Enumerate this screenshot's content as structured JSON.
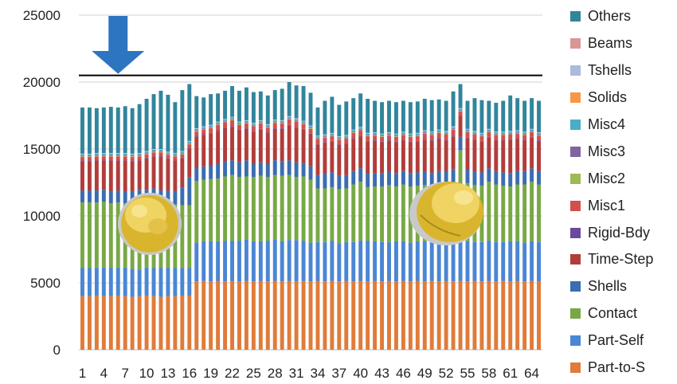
{
  "chart_data": {
    "type": "bar",
    "stacked": true,
    "ylim": [
      0,
      25000
    ],
    "yticks": [
      0,
      5000,
      10000,
      15000,
      20000,
      25000
    ],
    "grid": true,
    "legend_position": "right",
    "xtick_labels": [
      "1",
      "4",
      "7",
      "10",
      "13",
      "16",
      "19",
      "22",
      "25",
      "28",
      "31",
      "34",
      "37",
      "40",
      "43",
      "46",
      "49",
      "52",
      "55",
      "58",
      "61",
      "64"
    ],
    "categories": [
      1,
      2,
      3,
      4,
      5,
      6,
      7,
      8,
      9,
      10,
      11,
      12,
      13,
      14,
      15,
      16,
      17,
      18,
      19,
      20,
      21,
      22,
      23,
      24,
      25,
      26,
      27,
      28,
      29,
      30,
      31,
      32,
      33,
      34,
      35,
      36,
      37,
      38,
      39,
      40,
      41,
      42,
      43,
      44,
      45,
      46,
      47,
      48,
      49,
      50,
      51,
      52,
      53,
      54,
      55,
      56,
      57,
      58,
      59,
      60,
      61,
      62,
      63,
      64,
      65
    ],
    "reference_line": {
      "y": 20500,
      "color": "#000000"
    },
    "arrow": {
      "x": 6,
      "color": "#2e75c0"
    },
    "series": [
      {
        "name": "Part-to-S",
        "color": "#e07b39",
        "values": [
          4000,
          4000,
          4050,
          4000,
          4000,
          4050,
          4000,
          3950,
          4000,
          4050,
          4000,
          3950,
          4000,
          4000,
          4050,
          4050,
          5100,
          5150,
          5100,
          5150,
          5100,
          5150,
          5100,
          5150,
          5100,
          5150,
          5100,
          5150,
          5100,
          5150,
          5100,
          5150,
          5100,
          5150,
          5100,
          5150,
          5100,
          5150,
          5100,
          5150,
          5100,
          5150,
          5100,
          5150,
          5100,
          5150,
          5100,
          5150,
          5100,
          5150,
          5100,
          5150,
          5100,
          5150,
          5100,
          5150,
          5100,
          5150,
          5100,
          5150,
          5100,
          5150,
          5100,
          5150,
          5100
        ]
      },
      {
        "name": "Part-Self",
        "color": "#4a86d4",
        "values": [
          2100,
          2100,
          2100,
          2150,
          2100,
          2100,
          2150,
          2100,
          2000,
          2100,
          2100,
          2150,
          2100,
          2100,
          2050,
          2050,
          2900,
          2950,
          3000,
          2950,
          3050,
          3000,
          3050,
          3100,
          3000,
          2950,
          3050,
          3100,
          3000,
          3050,
          3100,
          3000,
          2900,
          2900,
          2950,
          3000,
          2850,
          2900,
          2950,
          3000,
          3050,
          2950,
          2950,
          2900,
          3000,
          2950,
          2900,
          2950,
          3000,
          2900,
          2950,
          2900,
          3000,
          2950,
          3000,
          2900,
          2950,
          3000,
          2950,
          2900,
          3000,
          2950,
          2900,
          2950,
          2950
        ]
      },
      {
        "name": "Contact",
        "color": "#78a846",
        "values": [
          4900,
          4900,
          4850,
          4900,
          4850,
          4850,
          4800,
          4900,
          4950,
          4700,
          4750,
          4700,
          4600,
          4750,
          4700,
          4700,
          4600,
          4600,
          4650,
          4700,
          4800,
          4900,
          4750,
          4700,
          4800,
          4900,
          4750,
          4800,
          4900,
          4850,
          4700,
          4800,
          4700,
          4000,
          4000,
          4000,
          4050,
          4000,
          4300,
          4400,
          4000,
          4100,
          4150,
          4250,
          4100,
          4250,
          4200,
          4150,
          4200,
          4150,
          4300,
          4250,
          4400,
          6800,
          4350,
          4250,
          4200,
          4400,
          4300,
          4200,
          4100,
          4250,
          4350,
          4450,
          4300
        ]
      },
      {
        "name": "Shells",
        "color": "#3b6db0",
        "values": [
          900,
          900,
          900,
          900,
          900,
          900,
          900,
          900,
          1000,
          1100,
          1200,
          1100,
          1200,
          1000,
          1300,
          2100,
          1000,
          1000,
          1000,
          1100,
          1100,
          1100,
          1100,
          1200,
          1000,
          1000,
          1000,
          1100,
          1100,
          1100,
          1100,
          1000,
          1000,
          1000,
          1100,
          1100,
          1000,
          1000,
          1000,
          1000,
          1000,
          1000,
          1000,
          1000,
          1000,
          1000,
          1000,
          1000,
          1000,
          1000,
          1000,
          1000,
          1000,
          1000,
          1000,
          1000,
          1000,
          1000,
          1000,
          1000,
          1000,
          1000,
          1000,
          1000,
          1000
        ]
      },
      {
        "name": "Time-Step",
        "color": "#b13d3a",
        "values": [
          2200,
          2200,
          2250,
          2200,
          2300,
          2250,
          2300,
          2250,
          2200,
          2350,
          2400,
          2550,
          2350,
          2300,
          2200,
          2150,
          2300,
          2350,
          2400,
          2450,
          2500,
          2500,
          2400,
          2350,
          2400,
          2450,
          2300,
          2350,
          2400,
          2600,
          2600,
          2500,
          2400,
          2300,
          2300,
          2300,
          2300,
          2350,
          2400,
          2400,
          2400,
          2400,
          2300,
          2300,
          2300,
          2300,
          2300,
          2300,
          2400,
          2400,
          2400,
          2350,
          2400,
          1550,
          2350,
          2400,
          2300,
          2300,
          2300,
          2400,
          2500,
          2400,
          2300,
          2300,
          2250
        ]
      },
      {
        "name": "Rigid-Bdy",
        "color": "#6a4b9a",
        "values": [
          50,
          50,
          50,
          50,
          50,
          50,
          50,
          50,
          50,
          50,
          50,
          50,
          50,
          50,
          50,
          50,
          50,
          50,
          50,
          50,
          50,
          50,
          50,
          50,
          50,
          50,
          50,
          50,
          50,
          50,
          50,
          50,
          50,
          50,
          50,
          50,
          50,
          50,
          50,
          50,
          50,
          50,
          50,
          50,
          50,
          50,
          50,
          50,
          50,
          50,
          50,
          50,
          50,
          50,
          50,
          50,
          50,
          50,
          50,
          50,
          50,
          50,
          50,
          50,
          50
        ]
      },
      {
        "name": "Misc1",
        "color": "#d0504d",
        "values": [
          250,
          250,
          250,
          250,
          250,
          250,
          250,
          250,
          250,
          250,
          250,
          250,
          250,
          250,
          250,
          250,
          350,
          350,
          350,
          400,
          400,
          450,
          350,
          350,
          350,
          400,
          350,
          400,
          350,
          400,
          400,
          350,
          350,
          350,
          350,
          350,
          350,
          350,
          400,
          400,
          350,
          350,
          350,
          350,
          350,
          350,
          350,
          350,
          400,
          400,
          400,
          400,
          500,
          300,
          400,
          350,
          350,
          350,
          350,
          350,
          350,
          350,
          350,
          350,
          350
        ]
      },
      {
        "name": "Misc2",
        "color": "#9bbb59",
        "values": [
          50,
          50,
          50,
          50,
          50,
          50,
          50,
          50,
          50,
          50,
          50,
          50,
          50,
          50,
          50,
          50,
          50,
          50,
          50,
          50,
          50,
          50,
          50,
          50,
          50,
          50,
          50,
          50,
          50,
          50,
          50,
          50,
          50,
          50,
          50,
          50,
          50,
          50,
          50,
          50,
          50,
          50,
          50,
          50,
          50,
          50,
          50,
          50,
          50,
          50,
          50,
          50,
          50,
          50,
          50,
          50,
          50,
          50,
          50,
          50,
          50,
          50,
          50,
          50,
          50
        ]
      },
      {
        "name": "Misc3",
        "color": "#8064a2",
        "values": [
          50,
          50,
          50,
          50,
          50,
          50,
          50,
          50,
          50,
          50,
          50,
          50,
          50,
          50,
          50,
          50,
          50,
          50,
          50,
          50,
          50,
          50,
          50,
          50,
          50,
          50,
          50,
          50,
          50,
          50,
          50,
          50,
          50,
          50,
          50,
          50,
          50,
          50,
          50,
          50,
          50,
          50,
          50,
          50,
          50,
          50,
          50,
          50,
          50,
          50,
          50,
          50,
          50,
          50,
          50,
          50,
          50,
          50,
          50,
          50,
          50,
          50,
          50,
          50,
          50
        ]
      },
      {
        "name": "Misc4",
        "color": "#4bacc6",
        "values": [
          100,
          100,
          100,
          100,
          100,
          100,
          100,
          100,
          100,
          100,
          100,
          100,
          100,
          100,
          100,
          100,
          100,
          100,
          100,
          100,
          100,
          100,
          100,
          100,
          100,
          100,
          100,
          100,
          100,
          100,
          100,
          100,
          100,
          100,
          100,
          100,
          100,
          100,
          100,
          100,
          100,
          100,
          100,
          100,
          100,
          100,
          100,
          100,
          100,
          100,
          100,
          100,
          100,
          100,
          100,
          100,
          100,
          100,
          100,
          100,
          100,
          100,
          100,
          100,
          100
        ]
      },
      {
        "name": "Solids",
        "color": "#f79646",
        "values": [
          0,
          0,
          0,
          0,
          0,
          0,
          0,
          0,
          0,
          0,
          0,
          0,
          0,
          0,
          0,
          0,
          0,
          0,
          0,
          0,
          0,
          0,
          0,
          0,
          0,
          0,
          0,
          0,
          0,
          0,
          0,
          0,
          0,
          0,
          0,
          0,
          0,
          0,
          0,
          0,
          0,
          0,
          0,
          0,
          0,
          0,
          0,
          0,
          0,
          0,
          0,
          0,
          0,
          0,
          0,
          0,
          0,
          0,
          0,
          0,
          0,
          0,
          0,
          0,
          0
        ]
      },
      {
        "name": "Tshells",
        "color": "#aabbdb",
        "values": [
          50,
          50,
          50,
          50,
          50,
          50,
          50,
          50,
          50,
          50,
          50,
          50,
          50,
          50,
          50,
          50,
          50,
          50,
          50,
          50,
          50,
          50,
          50,
          50,
          50,
          50,
          50,
          50,
          50,
          50,
          50,
          50,
          50,
          50,
          50,
          50,
          50,
          50,
          50,
          50,
          50,
          50,
          50,
          50,
          50,
          50,
          50,
          50,
          50,
          50,
          50,
          50,
          50,
          50,
          50,
          50,
          50,
          50,
          50,
          50,
          50,
          50,
          50,
          50,
          50
        ]
      },
      {
        "name": "Beams",
        "color": "#d99694",
        "values": [
          0,
          0,
          0,
          0,
          0,
          0,
          0,
          0,
          0,
          0,
          0,
          0,
          0,
          0,
          0,
          0,
          0,
          0,
          0,
          0,
          0,
          0,
          0,
          0,
          0,
          0,
          0,
          0,
          0,
          0,
          0,
          0,
          0,
          0,
          0,
          0,
          0,
          0,
          0,
          0,
          0,
          0,
          0,
          0,
          0,
          0,
          0,
          0,
          0,
          0,
          0,
          0,
          0,
          0,
          0,
          0,
          0,
          0,
          0,
          0,
          0,
          0,
          0,
          0,
          0
        ]
      },
      {
        "name": "Others",
        "color": "#31859c",
        "values": [
          3450,
          3450,
          3350,
          3400,
          3450,
          3400,
          3500,
          3400,
          3650,
          3900,
          4100,
          4350,
          4250,
          3800,
          4550,
          4250,
          2400,
          2150,
          2300,
          2100,
          2100,
          2300,
          2300,
          2450,
          2300,
          2150,
          2150,
          2200,
          2350,
          2550,
          2450,
          2600,
          2450,
          2100,
          2500,
          2700,
          2350,
          2500,
          2350,
          2500,
          2550,
          2350,
          2350,
          2350,
          2350,
          2300,
          2350,
          2350,
          2350,
          2350,
          2250,
          2250,
          2600,
          1800,
          2100,
          2450,
          2450,
          2100,
          2150,
          2300,
          2650,
          2400,
          2300,
          2300,
          2350
        ]
      }
    ]
  }
}
